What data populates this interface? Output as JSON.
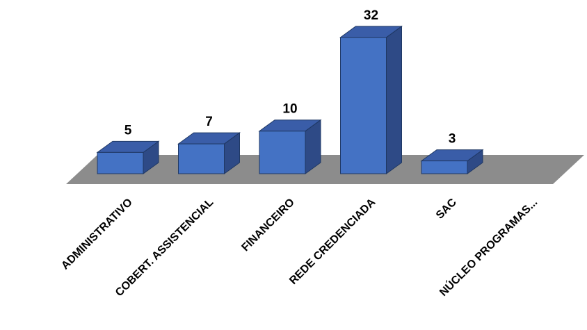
{
  "chart_data": {
    "type": "bar",
    "categories": [
      "ADMINISTRATIVO",
      "COBERT. ASSISTENCIAL",
      "FINANCEIRO",
      "REDE CREDENCIADA",
      "SAC",
      "NÚCLEO PROGRAMAS..."
    ],
    "values": [
      5,
      7,
      10,
      32,
      3,
      0
    ],
    "value_labels": [
      "5",
      "7",
      "10",
      "32",
      "3",
      ""
    ],
    "title": "",
    "xlabel": "",
    "ylabel": "",
    "ylim": [
      0,
      32
    ],
    "grid": false,
    "legend": "none",
    "style": "3d-column"
  },
  "colors": {
    "front": "#4472C4",
    "top": "#3A5DA8",
    "side": "#2E4A86",
    "edge": "#1F3864",
    "floor": "#8C8C8C"
  }
}
